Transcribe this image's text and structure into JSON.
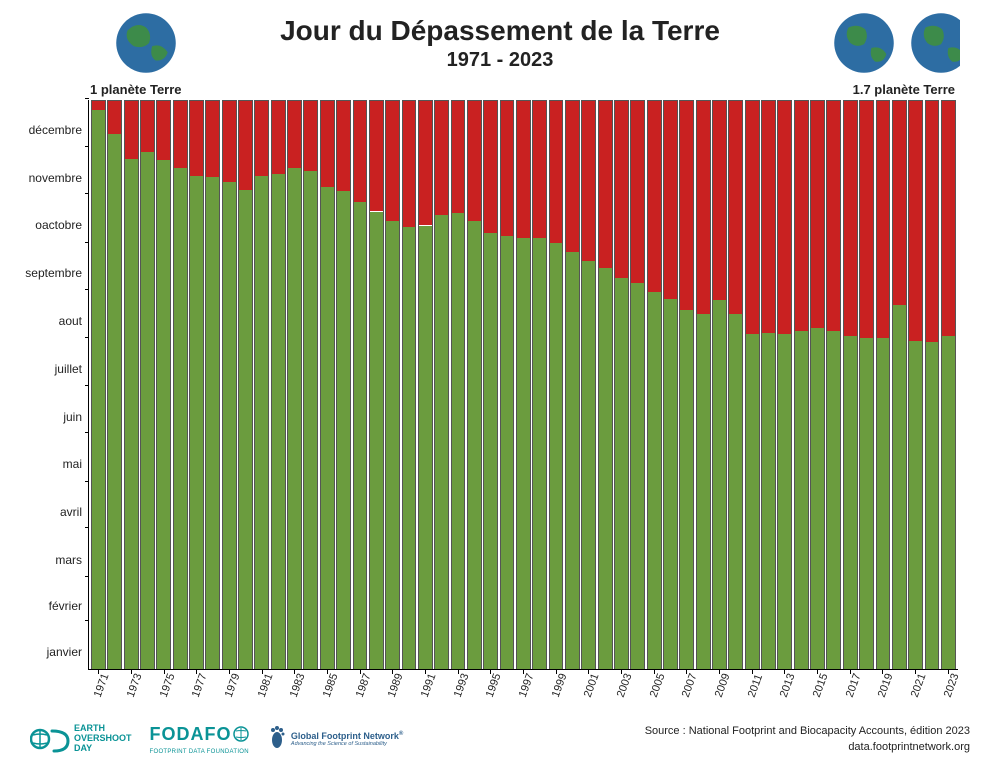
{
  "title": "Jour du Dépassement de la Terre",
  "subtitle": "1971 - 2023",
  "annotation_left": "1 planète Terre",
  "annotation_right": "1.7 planète Terre",
  "chart": {
    "type": "stacked-bar",
    "background_color": "#ffffff",
    "green_color": "#6b9c3e",
    "red_color": "#c92121",
    "bar_border_color": "#555555",
    "axis_color": "#000000",
    "y_labels": [
      "janvier",
      "février",
      "mars",
      "avril",
      "mai",
      "juin",
      "juillet",
      "aout",
      "septembre",
      "oactobre",
      "novembre",
      "décembre"
    ],
    "y_max_days": 365,
    "years": [
      1971,
      1972,
      1973,
      1974,
      1975,
      1976,
      1977,
      1978,
      1979,
      1980,
      1981,
      1982,
      1983,
      1984,
      1985,
      1986,
      1987,
      1988,
      1989,
      1990,
      1991,
      1992,
      1993,
      1994,
      1995,
      1996,
      1997,
      1998,
      1999,
      2000,
      2001,
      2002,
      2003,
      2004,
      2005,
      2006,
      2007,
      2008,
      2009,
      2010,
      2011,
      2012,
      2013,
      2014,
      2015,
      2016,
      2017,
      2018,
      2019,
      2020,
      2021,
      2022,
      2023
    ],
    "green_days": [
      359,
      344,
      328,
      332,
      327,
      322,
      317,
      316,
      313,
      308,
      317,
      318,
      322,
      320,
      310,
      307,
      300,
      294,
      288,
      284,
      285,
      292,
      293,
      288,
      280,
      278,
      277,
      277,
      274,
      268,
      262,
      258,
      251,
      248,
      242,
      238,
      231,
      228,
      237,
      228,
      215,
      216,
      215,
      217,
      219,
      217,
      214,
      213,
      213,
      234,
      211,
      210,
      214
    ],
    "x_tick_interval": 2,
    "label_fontsize": 12,
    "x_label_fontsize": 11
  },
  "logos": {
    "eod_color": "#0a9396",
    "eod_line1": "EARTH",
    "eod_line2": "OVERSHOOT",
    "eod_line3": "DAY",
    "fodafo_color": "#0a9396",
    "fodafo_name": "FODAFO",
    "fodafo_sub": "FOOTPRINT DATA FOUNDATION",
    "gfn_color": "#2d5f8b",
    "gfn_name": "Global Footprint Network",
    "gfn_sub": "Advancing the Science of Sustainability"
  },
  "credit_line1": "Source : National Footprint and Biocapacity Accounts, édition 2023",
  "credit_line2": "data.footprintnetwork.org"
}
